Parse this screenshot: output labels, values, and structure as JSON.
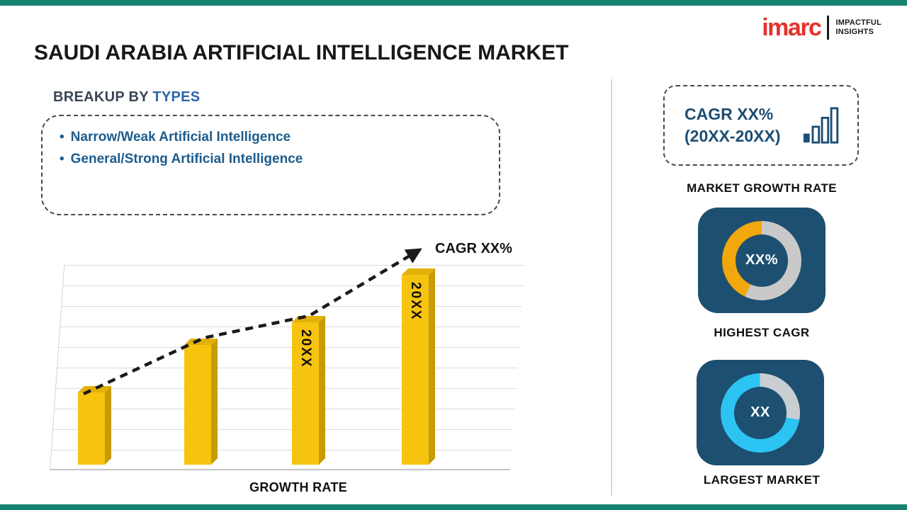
{
  "colors": {
    "accent_teal": "#17826D",
    "navy": "#1D4F70",
    "bar_yellow": "#F6C40E",
    "donut_orange": "#F2A70C",
    "donut_cyan": "#2BC4F3",
    "logo_red": "#E5322B"
  },
  "logo": {
    "brand": "imarc",
    "tagline_line1": "IMPACTFUL",
    "tagline_line2": "INSIGHTS"
  },
  "title": "SAUDI ARABIA ARTIFICIAL INTELLIGENCE MARKET",
  "breakup": {
    "heading_prefix": "BREAKUP BY",
    "heading_highlight": "TYPES",
    "items": [
      "Narrow/Weak Artificial Intelligence",
      "General/Strong Artificial Intelligence"
    ]
  },
  "chart_data": {
    "type": "bar",
    "categories": [
      "",
      "",
      "20XX",
      "20XX"
    ],
    "values": [
      38,
      63,
      75,
      100
    ],
    "bar_labels": [
      "",
      "",
      "20XX",
      "20XX"
    ],
    "title": "",
    "xlabel": "GROWTH RATE",
    "ylabel": "",
    "value_units": "relative height (axis unlabeled)",
    "grid": true,
    "bar_color": "#F6C40E",
    "trend": {
      "style": "dashed-ascending-arrow",
      "annotation": "CAGR XX%"
    }
  },
  "sidebar": {
    "growth_box": {
      "line1": "CAGR XX%",
      "line2": "(20XX-20XX)",
      "label": "MARKET GROWTH RATE"
    },
    "highest_cagr": {
      "value": "XX%",
      "label": "HIGHEST CAGR",
      "percent": 43,
      "start_deg": 205,
      "color": "#F2A70C",
      "track_color": "#C9C9C9"
    },
    "largest_market": {
      "value": "XX",
      "label": "LARGEST MARKET",
      "percent": 72,
      "start_deg": 100,
      "color": "#2BC4F3",
      "track_color": "#C9CED2"
    }
  }
}
